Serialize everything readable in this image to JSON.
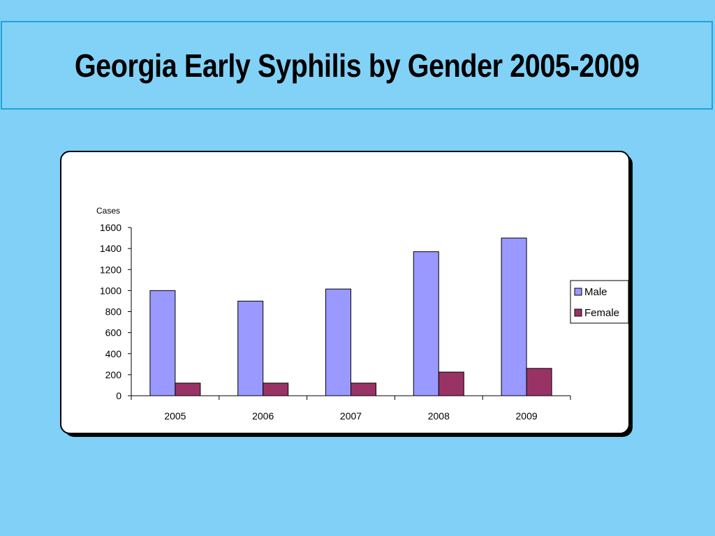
{
  "slide": {
    "title": "Georgia Early Syphilis by Gender 2005-2009"
  },
  "chart_data": {
    "type": "bar",
    "title": "",
    "ylabel": "Cases",
    "xlabel": "",
    "categories": [
      "2005",
      "2006",
      "2007",
      "2008",
      "2009"
    ],
    "series": [
      {
        "name": "Male",
        "values": [
          1000,
          900,
          1015,
          1370,
          1500
        ],
        "color": "#9999ff"
      },
      {
        "name": "Female",
        "values": [
          120,
          120,
          120,
          225,
          260
        ],
        "color": "#993366"
      }
    ],
    "ylim": [
      0,
      1600
    ],
    "yticks": [
      0,
      200,
      400,
      600,
      800,
      1000,
      1200,
      1400,
      1600
    ],
    "grid": false,
    "legend": "right"
  }
}
